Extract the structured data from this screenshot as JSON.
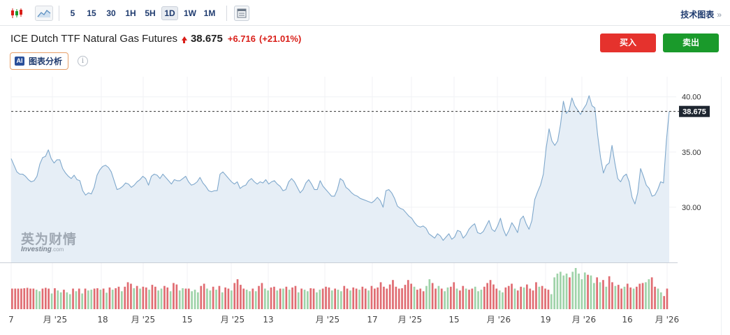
{
  "toolbar": {
    "chart_type_icons": [
      "candlestick-icon",
      "area-chart-icon"
    ],
    "intervals": [
      "5",
      "15",
      "30",
      "1H",
      "5H",
      "1D",
      "1W",
      "1M"
    ],
    "active_interval": "1D",
    "layout_icon": "layout-icon",
    "tech_chart_label": "技术图表",
    "tech_chart_chevron": "»"
  },
  "header": {
    "instrument": "ICE Dutch TTF Natural Gas Futures",
    "last_price": "38.675",
    "change": "+6.716",
    "change_pct": "(+21.01%)",
    "ai_badge": "AI",
    "ai_button_label": "图表分析",
    "info_glyph": "i"
  },
  "trade": {
    "buy_label": "买入",
    "sell_label": "卖出"
  },
  "colors": {
    "up": "#d91e18",
    "buy": "#e5322d",
    "sell": "#1a9a2b",
    "line": "#7fa8cc",
    "area": "#e6eef6",
    "vol_up": "#9fd3a9",
    "vol_down": "#e06c72"
  },
  "watermark": {
    "text_cn": "英为财情",
    "text_en": "Investing",
    "text_com": ".com"
  },
  "chart_data": {
    "type": "area",
    "y_axis_ticks": [
      "30.00",
      "35.00",
      "40.00"
    ],
    "last_value_label": "38.675",
    "ylim": [
      25.0,
      41.5
    ],
    "x_labels": [
      "7",
      "月 '25",
      "18",
      "月 '25",
      "15",
      "月 '25",
      "13",
      "月 '25",
      "17",
      "月 '25",
      "15",
      "月 '26",
      "19",
      "月 '26",
      "16",
      "月 '26"
    ],
    "price": [
      34.4,
      33.8,
      33.2,
      33.0,
      33.0,
      32.8,
      32.5,
      32.3,
      32.4,
      32.8,
      33.9,
      34.5,
      34.6,
      35.2,
      34.4,
      34.0,
      34.3,
      34.3,
      33.5,
      33.1,
      32.8,
      32.6,
      32.9,
      32.5,
      32.4,
      31.5,
      31.1,
      31.3,
      31.2,
      31.8,
      32.9,
      33.4,
      33.7,
      33.8,
      33.6,
      33.2,
      32.4,
      31.6,
      31.7,
      31.9,
      32.2,
      32.1,
      31.8,
      32.0,
      32.3,
      32.5,
      32.8,
      32.6,
      32.0,
      32.8,
      33.0,
      32.9,
      32.6,
      33.0,
      32.7,
      32.4,
      32.1,
      32.5,
      32.4,
      32.4,
      32.6,
      32.8,
      32.3,
      32.0,
      32.1,
      32.3,
      32.7,
      32.2,
      31.9,
      31.5,
      31.4,
      31.5,
      31.5,
      33.0,
      33.2,
      32.9,
      32.6,
      32.3,
      32.1,
      32.3,
      31.7,
      31.9,
      32.0,
      32.4,
      32.6,
      32.3,
      32.1,
      32.3,
      32.2,
      32.5,
      32.1,
      32.3,
      32.4,
      32.1,
      31.9,
      31.5,
      31.6,
      32.3,
      32.6,
      32.3,
      31.8,
      31.3,
      31.6,
      32.2,
      32.5,
      32.1,
      31.6,
      31.6,
      32.4,
      31.9,
      31.6,
      31.3,
      31.0,
      31.0,
      31.6,
      32.6,
      32.4,
      31.8,
      31.6,
      31.3,
      31.1,
      31.0,
      30.8,
      30.7,
      30.6,
      30.5,
      30.4,
      30.6,
      30.9,
      30.6,
      30.0,
      31.5,
      31.6,
      31.3,
      30.8,
      30.1,
      29.9,
      29.8,
      29.5,
      29.2,
      29.0,
      28.6,
      28.3,
      28.2,
      28.3,
      28.1,
      27.6,
      27.4,
      27.2,
      27.6,
      27.4,
      27.0,
      27.3,
      27.6,
      27.1,
      27.3,
      27.9,
      27.8,
      27.2,
      27.5,
      28.0,
      28.3,
      28.5,
      27.7,
      27.6,
      27.8,
      28.3,
      28.8,
      28.0,
      27.8,
      28.3,
      29.0,
      28.0,
      27.4,
      27.9,
      28.6,
      28.2,
      27.7,
      28.9,
      29.2,
      28.5,
      28.0,
      28.8,
      30.7,
      31.4,
      32.0,
      33.0,
      35.4,
      37.1,
      36.0,
      35.6,
      36.0,
      37.5,
      39.6,
      38.5,
      38.8,
      39.9,
      39.2,
      38.8,
      38.4,
      38.9,
      39.3,
      40.1,
      39.2,
      39.0,
      36.5,
      34.5,
      33.1,
      33.8,
      34.0,
      35.6,
      34.0,
      32.6,
      32.3,
      32.8,
      33.0,
      32.3,
      30.9,
      30.3,
      31.3,
      33.5,
      32.8,
      32.0,
      31.7,
      31.0,
      31.1,
      31.6,
      32.3,
      32.2,
      36.0,
      38.675
    ],
    "volume": [
      0.55,
      0.55,
      0.55,
      0.55,
      0.56,
      0.57,
      0.55,
      0.55,
      0.52,
      0.48,
      0.55,
      0.57,
      0.55,
      0.42,
      0.56,
      0.5,
      0.45,
      0.52,
      0.45,
      0.4,
      0.55,
      0.48,
      0.55,
      0.42,
      0.55,
      0.5,
      0.52,
      0.55,
      0.56,
      0.52,
      0.55,
      0.44,
      0.58,
      0.52,
      0.56,
      0.6,
      0.48,
      0.6,
      0.72,
      0.68,
      0.56,
      0.62,
      0.55,
      0.6,
      0.58,
      0.52,
      0.65,
      0.6,
      0.5,
      0.55,
      0.62,
      0.58,
      0.48,
      0.7,
      0.66,
      0.5,
      0.56,
      0.55,
      0.55,
      0.48,
      0.52,
      0.45,
      0.62,
      0.68,
      0.55,
      0.5,
      0.6,
      0.52,
      0.62,
      0.45,
      0.58,
      0.55,
      0.5,
      0.7,
      0.8,
      0.65,
      0.55,
      0.52,
      0.48,
      0.55,
      0.48,
      0.62,
      0.7,
      0.55,
      0.5,
      0.58,
      0.6,
      0.5,
      0.55,
      0.55,
      0.6,
      0.52,
      0.58,
      0.62,
      0.45,
      0.55,
      0.52,
      0.48,
      0.56,
      0.55,
      0.45,
      0.52,
      0.55,
      0.6,
      0.58,
      0.5,
      0.55,
      0.52,
      0.48,
      0.62,
      0.55,
      0.5,
      0.58,
      0.55,
      0.52,
      0.6,
      0.55,
      0.5,
      0.62,
      0.55,
      0.58,
      0.72,
      0.6,
      0.55,
      0.66,
      0.78,
      0.6,
      0.55,
      0.56,
      0.65,
      0.78,
      0.68,
      0.6,
      0.52,
      0.55,
      0.48,
      0.62,
      0.8,
      0.7,
      0.55,
      0.62,
      0.55,
      0.48,
      0.58,
      0.6,
      0.72,
      0.55,
      0.5,
      0.62,
      0.55,
      0.52,
      0.55,
      0.6,
      0.48,
      0.52,
      0.6,
      0.7,
      0.78,
      0.66,
      0.55,
      0.5,
      0.45,
      0.58,
      0.62,
      0.68,
      0.55,
      0.5,
      0.6,
      0.58,
      0.66,
      0.55,
      0.5,
      0.72,
      0.6,
      0.62,
      0.55,
      0.52,
      0.4,
      0.85,
      0.95,
      1.0,
      0.9,
      0.95,
      0.85,
      1.0,
      1.1,
      0.95,
      0.8,
      0.98,
      0.92,
      0.9,
      0.7,
      0.85,
      0.72,
      0.78,
      0.6,
      0.88,
      0.72,
      0.62,
      0.65,
      0.55,
      0.6,
      0.68,
      0.58,
      0.55,
      0.6,
      0.68,
      0.7,
      0.72,
      0.8,
      0.85,
      0.6,
      0.55,
      0.45,
      0.35,
      0.55
    ],
    "volume_up": [
      0,
      0,
      0,
      0,
      0,
      0,
      0,
      0,
      1,
      1,
      0,
      0,
      0,
      1,
      0,
      1,
      1,
      0,
      1,
      1,
      0,
      1,
      0,
      1,
      0,
      1,
      1,
      0,
      0,
      1,
      0,
      1,
      0,
      1,
      0,
      0,
      1,
      0,
      0,
      0,
      1,
      0,
      1,
      0,
      0,
      1,
      0,
      0,
      1,
      1,
      0,
      0,
      1,
      0,
      0,
      1,
      1,
      0,
      0,
      1,
      1,
      1,
      0,
      0,
      1,
      1,
      0,
      1,
      0,
      1,
      0,
      0,
      1,
      0,
      0,
      0,
      0,
      1,
      1,
      0,
      1,
      0,
      0,
      1,
      1,
      0,
      0,
      1,
      0,
      1,
      0,
      1,
      0,
      0,
      1,
      0,
      1,
      1,
      0,
      0,
      1,
      1,
      0,
      0,
      0,
      1,
      0,
      1,
      1,
      0,
      0,
      1,
      0,
      0,
      1,
      0,
      0,
      1,
      0,
      0,
      0,
      0,
      0,
      0,
      0,
      0,
      0,
      0,
      0,
      0,
      0,
      0,
      1,
      0,
      0,
      0,
      1,
      1,
      0,
      0,
      1,
      0,
      1,
      1,
      0,
      0,
      1,
      0,
      0,
      1,
      0,
      0,
      1,
      1,
      1,
      0,
      0,
      0,
      0,
      0,
      1,
      1,
      0,
      0,
      0,
      1,
      0,
      0,
      1,
      0,
      0,
      0,
      0,
      1,
      0,
      0,
      0,
      1,
      1,
      1,
      1,
      1,
      1,
      0,
      1,
      1,
      1,
      1,
      1,
      0,
      1,
      1,
      0,
      1,
      0,
      1,
      0,
      0,
      1,
      0,
      0,
      1,
      0,
      0,
      1,
      0,
      0,
      0,
      1,
      1,
      0,
      0,
      1,
      1,
      0,
      0
    ]
  }
}
